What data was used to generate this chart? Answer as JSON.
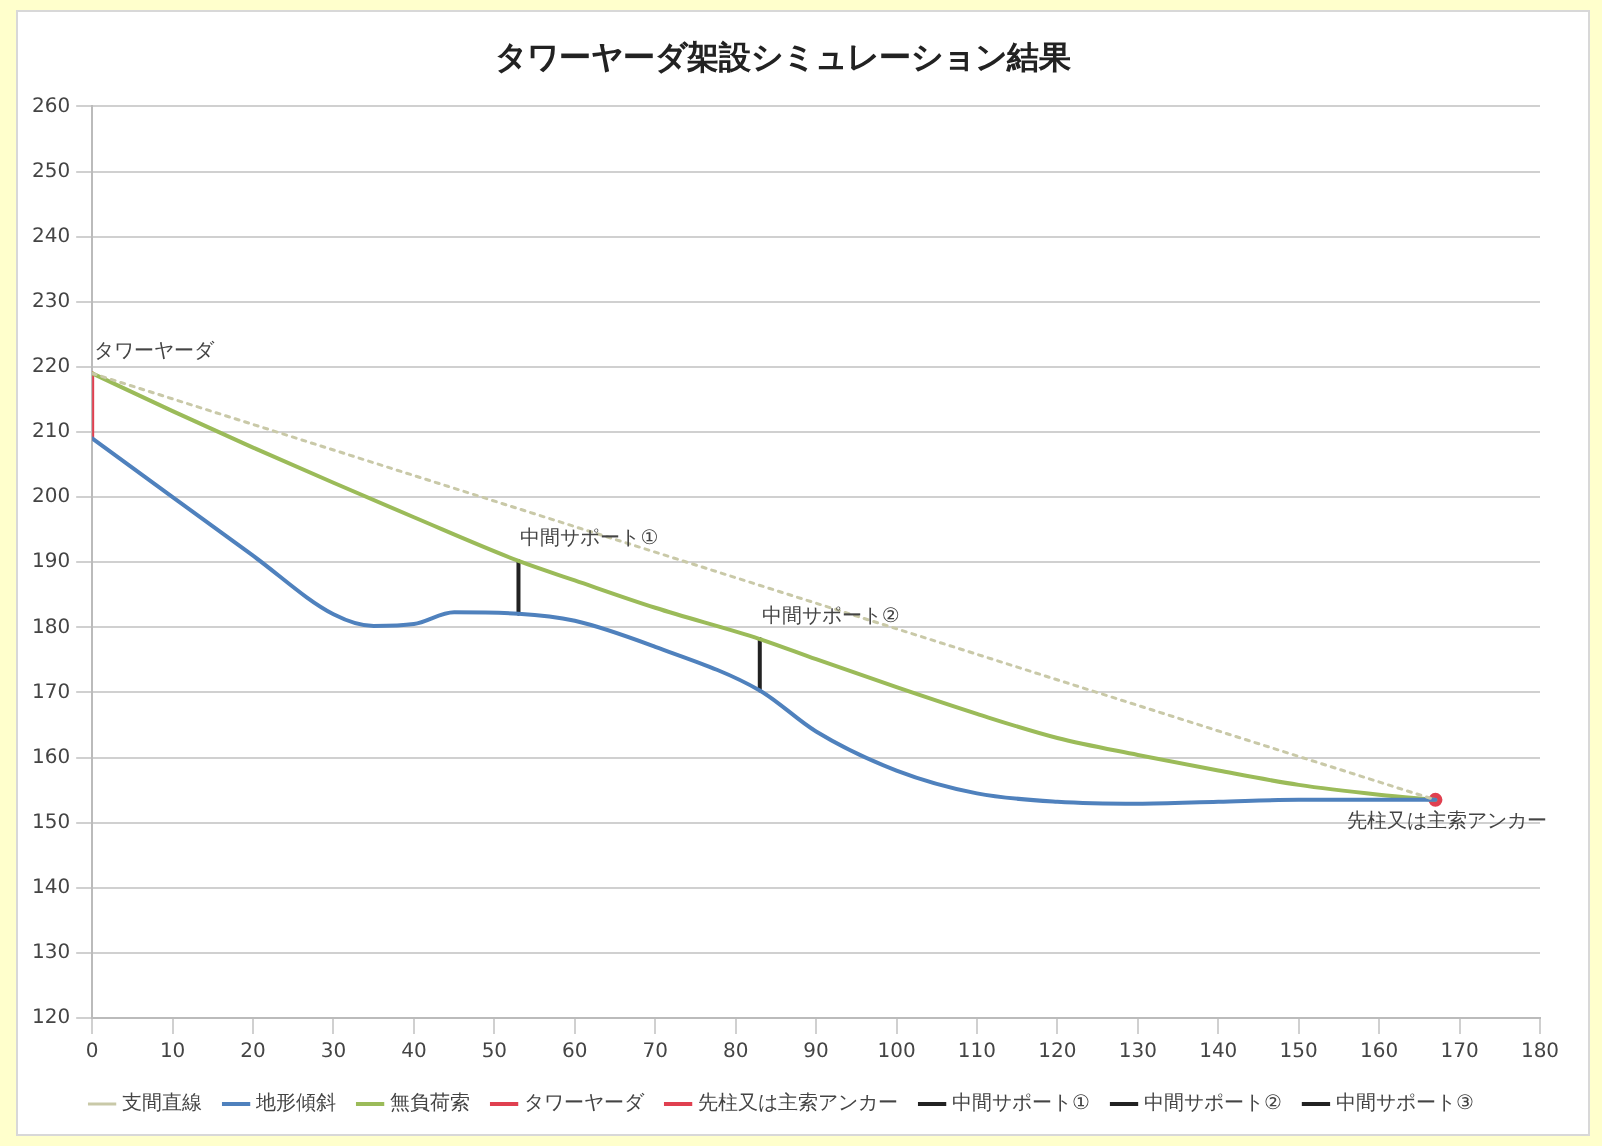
{
  "chart_data": {
    "type": "line",
    "title": "タワーヤーダ架設シミュレーション結果",
    "xlim": [
      0,
      180
    ],
    "xticks": [
      0,
      10,
      20,
      30,
      40,
      50,
      60,
      70,
      80,
      90,
      100,
      110,
      120,
      130,
      140,
      150,
      160,
      170,
      180
    ],
    "ylim": [
      120,
      260
    ],
    "yticks": [
      120,
      130,
      140,
      150,
      160,
      170,
      180,
      190,
      200,
      210,
      220,
      230,
      240,
      250,
      260
    ],
    "grid": "y",
    "legend": "bottom",
    "marker": "none",
    "series": [
      {
        "name": "支間直線",
        "color": "#c9c9a8",
        "line_style": "dotted",
        "x": [
          0,
          167
        ],
        "values": [
          219,
          153.5
        ]
      },
      {
        "name": "地形傾斜",
        "color": "#4f81bd",
        "x": [
          0,
          10,
          20,
          30,
          35,
          40,
          45,
          53,
          60,
          70,
          83,
          90,
          100,
          110,
          120,
          130,
          140,
          150,
          167
        ],
        "values": [
          209,
          200,
          191,
          182,
          180.2,
          180.5,
          182.3,
          182.1,
          181,
          177,
          170.3,
          164,
          158,
          154.5,
          153.2,
          152.9,
          153.2,
          153.5,
          153.5
        ]
      },
      {
        "name": "無負荷索",
        "color": "#9bbb59",
        "x": [
          0,
          10,
          20,
          30,
          40,
          53,
          60,
          70,
          83,
          90,
          100,
          110,
          120,
          130,
          140,
          150,
          160,
          167
        ],
        "values": [
          219,
          213.2,
          207.6,
          202.2,
          196.9,
          190.2,
          187.2,
          183,
          178.2,
          175.1,
          170.8,
          166.7,
          163,
          160.4,
          158,
          155.8,
          154.3,
          153.5
        ]
      },
      {
        "name": "タワーヤーダ",
        "color": "#e04050",
        "x": [
          0,
          0
        ],
        "values": [
          209,
          219
        ]
      },
      {
        "name": "先柱又は主索アンカー",
        "color": "#e04050",
        "marker": "circle",
        "x": [
          167
        ],
        "values": [
          153.5
        ]
      },
      {
        "name": "中間サポート①",
        "color": "#222222",
        "x": [
          53,
          53
        ],
        "values": [
          182.1,
          190.2
        ]
      },
      {
        "name": "中間サポート②",
        "color": "#222222",
        "x": [
          83,
          83
        ],
        "values": [
          170.3,
          178.2
        ]
      },
      {
        "name": "中間サポート③",
        "color": "#222222"
      }
    ],
    "annotations": [
      {
        "text": "タワーヤーダ",
        "x": 0,
        "y": 219
      },
      {
        "text": "中間サポート①",
        "x": 53,
        "y": 190.2
      },
      {
        "text": "中間サポート②",
        "x": 83,
        "y": 178.2
      },
      {
        "text": "先柱又は主索アンカー",
        "x": 167,
        "y": 153.5
      }
    ]
  }
}
